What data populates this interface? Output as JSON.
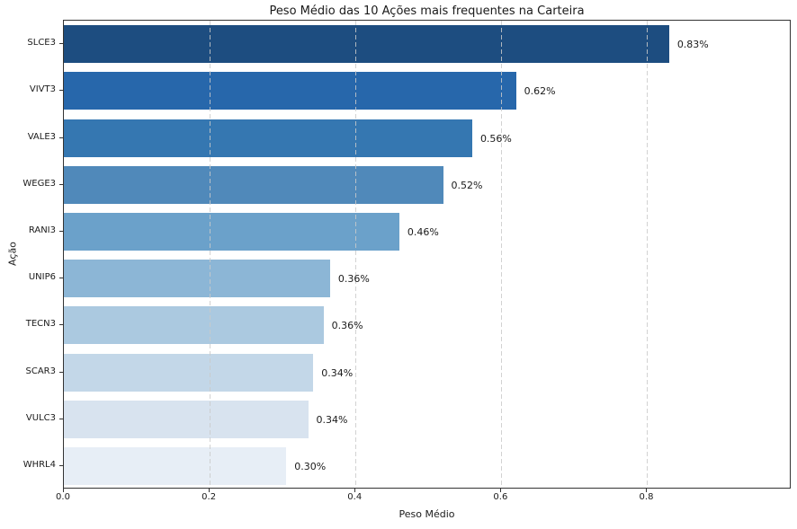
{
  "title": "Peso Médio das 10 Ações mais frequentes na Carteira",
  "chart_data": {
    "type": "bar",
    "orientation": "horizontal",
    "title": "Peso Médio das 10 Ações mais frequentes na Carteira",
    "xlabel": "Peso Médio",
    "ylabel": "Ação",
    "categories": [
      "SLCE3",
      "VIVT3",
      "VALE3",
      "WEGE3",
      "RANI3",
      "UNIP6",
      "TECN3",
      "SCAR3",
      "VULC3",
      "WHRL4"
    ],
    "values": [
      0.83,
      0.62,
      0.56,
      0.52,
      0.46,
      0.365,
      0.356,
      0.342,
      0.335,
      0.305
    ],
    "value_labels": [
      "0.83%",
      "0.62%",
      "0.56%",
      "0.52%",
      "0.46%",
      "0.36%",
      "0.36%",
      "0.34%",
      "0.34%",
      "0.30%"
    ],
    "bar_colors": [
      "#1d4d80",
      "#2767ab",
      "#3577b1",
      "#5089ba",
      "#6ba1ca",
      "#8cb6d6",
      "#abc9e0",
      "#c3d7e8",
      "#d8e3ef",
      "#e7eef6"
    ],
    "xlim": [
      0,
      0.998
    ],
    "xticks": [
      0.0,
      0.2,
      0.4,
      0.6,
      0.8
    ],
    "xtick_labels": [
      "0.0",
      "0.2",
      "0.4",
      "0.6",
      "0.8"
    ],
    "grid": "vertical-dashed",
    "legend": "none",
    "colors": {
      "spine": "#333333",
      "grid": "#cacaca",
      "text": "#1a1a1a",
      "background": "#ffffff"
    }
  }
}
